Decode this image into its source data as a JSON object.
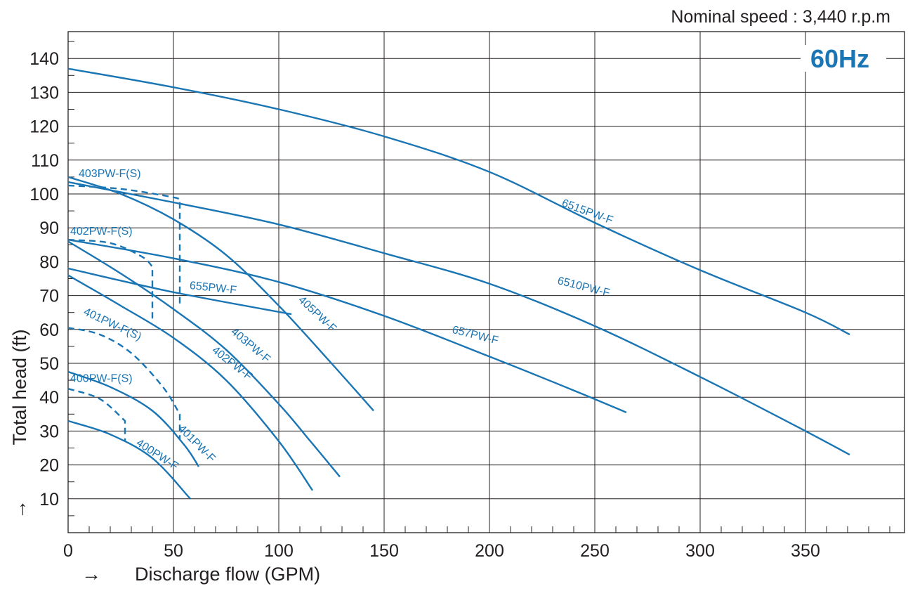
{
  "header": {
    "speed_note": "Nominal speed : 3,440 r.p.m"
  },
  "badge": {
    "text": "60Hz"
  },
  "colors": {
    "curve": "#1a75b4",
    "grid": "#231f20",
    "text": "#231f20",
    "background": "#ffffff"
  },
  "chart_data": {
    "type": "line",
    "title": "",
    "xlabel": "Discharge flow  (GPM)",
    "ylabel": "Total head  (ft)",
    "xlim": [
      0,
      398
    ],
    "ylim": [
      0,
      148
    ],
    "x_ticks": [
      0,
      50,
      100,
      150,
      200,
      250,
      300,
      350
    ],
    "y_ticks": [
      10,
      20,
      30,
      40,
      50,
      60,
      70,
      80,
      90,
      100,
      110,
      120,
      130,
      140
    ],
    "grid": true,
    "arrow_glyph": "→",
    "series": [
      {
        "name": "6515PW-F",
        "style": "solid",
        "x": [
          0,
          50,
          100,
          150,
          200,
          250,
          300,
          350,
          371
        ],
        "y": [
          137,
          131.5,
          125,
          117,
          106.5,
          91.5,
          77.5,
          65,
          58.5
        ]
      },
      {
        "name": "6510PW-F",
        "style": "solid",
        "x": [
          0,
          50,
          100,
          150,
          200,
          250,
          300,
          350,
          371
        ],
        "y": [
          103.5,
          97.5,
          91,
          82.5,
          73.5,
          61,
          46,
          30,
          23
        ]
      },
      {
        "name": "657PW-F",
        "style": "solid",
        "x": [
          0,
          50,
          100,
          150,
          200,
          240,
          265
        ],
        "y": [
          86.5,
          81,
          74,
          64,
          52,
          42,
          35.5
        ]
      },
      {
        "name": "655PW-F",
        "style": "solid",
        "x": [
          0,
          50,
          106
        ],
        "y": [
          78,
          71,
          64.5
        ]
      },
      {
        "name": "405PW-F",
        "style": "solid",
        "x": [
          0,
          25,
          50,
          75,
          100,
          125,
          145
        ],
        "y": [
          105,
          100,
          92.5,
          82,
          67,
          50,
          36
        ]
      },
      {
        "name": "403PW-F",
        "style": "solid",
        "x": [
          0,
          25,
          50,
          75,
          100,
          115,
          129
        ],
        "y": [
          86,
          76.5,
          66,
          54,
          38,
          27,
          16.5
        ]
      },
      {
        "name": "402PW-F",
        "style": "solid",
        "x": [
          0,
          25,
          50,
          75,
          100,
          116
        ],
        "y": [
          76,
          67,
          57.5,
          45,
          27,
          12.5
        ]
      },
      {
        "name": "401PW-F",
        "style": "solid",
        "x": [
          0,
          20,
          40,
          55,
          62
        ],
        "y": [
          47.5,
          43,
          36,
          26,
          19.5
        ]
      },
      {
        "name": "400PW-F",
        "style": "solid",
        "x": [
          0,
          20,
          40,
          58
        ],
        "y": [
          33,
          29,
          22,
          10
        ]
      },
      {
        "name": "403PW-F(S)",
        "style": "dashed",
        "x": [
          0,
          25,
          50,
          53,
          53
        ],
        "y": [
          102.5,
          101.5,
          99,
          98,
          66.5
        ]
      },
      {
        "name": "402PW-F(S)",
        "style": "dashed",
        "x": [
          0,
          20,
          35,
          40,
          40
        ],
        "y": [
          86.5,
          85.5,
          81.5,
          78.5,
          62.5
        ]
      },
      {
        "name": "401PW-F(S)",
        "style": "dashed",
        "x": [
          0,
          15,
          30,
          45,
          53,
          53
        ],
        "y": [
          60.5,
          58.5,
          53,
          43,
          35,
          27.5
        ]
      },
      {
        "name": "400PW-F(S)",
        "style": "dashed",
        "x": [
          0,
          15,
          27,
          27
        ],
        "y": [
          42.5,
          39.5,
          33,
          27
        ]
      }
    ],
    "series_labels": [
      {
        "series": "6515PW-F",
        "x": 234,
        "y": 96.5,
        "angle": 20
      },
      {
        "series": "6510PW-F",
        "x": 232,
        "y": 73.5,
        "angle": 14
      },
      {
        "series": "657PW-F",
        "x": 182,
        "y": 59,
        "angle": 14
      },
      {
        "series": "655PW-F",
        "x": 57.5,
        "y": 72,
        "angle": 6
      },
      {
        "series": "405PW-F",
        "x": 109,
        "y": 68.5,
        "angle": 43
      },
      {
        "series": "403PW-F",
        "x": 77,
        "y": 59,
        "angle": 40
      },
      {
        "series": "402PW-F",
        "x": 68,
        "y": 53.5,
        "angle": 38
      },
      {
        "series": "401PW-F",
        "x": 52,
        "y": 30.5,
        "angle": 45
      },
      {
        "series": "400PW-F",
        "x": 32,
        "y": 26,
        "angle": 33
      },
      {
        "series": "403PW-F(S)",
        "x": 5,
        "y": 105,
        "angle": 0
      },
      {
        "series": "402PW-F(S)",
        "x": 1,
        "y": 88,
        "angle": 0
      },
      {
        "series": "401PW-F(S)",
        "x": 7,
        "y": 64.5,
        "angle": 25
      },
      {
        "series": "400PW-F(S)",
        "x": 1,
        "y": 44.5,
        "angle": 0
      }
    ]
  }
}
